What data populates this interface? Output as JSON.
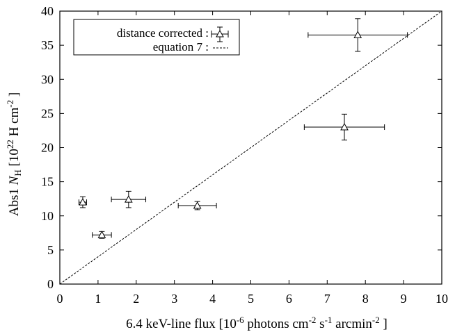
{
  "chart_data": {
    "type": "scatter",
    "xlim": [
      0,
      10
    ],
    "ylim": [
      0,
      40
    ],
    "xticks": [
      "0",
      "1",
      "2",
      "3",
      "4",
      "5",
      "6",
      "7",
      "8",
      "9",
      "10"
    ],
    "yticks": [
      "0",
      "5",
      "10",
      "15",
      "20",
      "25",
      "30",
      "35",
      "40"
    ],
    "xlabel": {
      "prefix": "6.4 keV-line flux   [10",
      "exp1": "-6",
      "mid1": " photons cm",
      "exp2": "-2",
      "mid2": " s",
      "exp3": "-1",
      "mid3": " arcmin",
      "exp4": "-2",
      "suffix": " ]"
    },
    "ylabel": {
      "prefix": "Abs1 ",
      "italic": "N",
      "sub": "H",
      "mid": " [10",
      "exp1": "22",
      "mid2": " H cm",
      "exp2": "-2",
      "suffix": " ]"
    },
    "legend": {
      "position": "top-left",
      "entries": [
        {
          "label": "distance  corrected :",
          "marker": "triangle-errorbar"
        },
        {
          "label": "equation 7 :",
          "marker": "dashed-line"
        }
      ]
    },
    "series": [
      {
        "marker": "triangle",
        "points": [
          {
            "x": 0.6,
            "y": 12.0,
            "xerr": 0.1,
            "yerr": 0.8
          },
          {
            "x": 1.1,
            "y": 7.2,
            "xerr": 0.25,
            "yerr": 0.5
          },
          {
            "x": 1.8,
            "y": 12.4,
            "xerr": 0.45,
            "yerr": 1.2
          },
          {
            "x": 3.6,
            "y": 11.5,
            "xerr": 0.5,
            "yerr": 0.6
          },
          {
            "x": 7.45,
            "y": 23.0,
            "xerr": 1.05,
            "yerr": 1.9
          },
          {
            "x": 7.8,
            "y": 36.5,
            "xerr": 1.3,
            "yerr": 2.4
          }
        ]
      },
      {
        "line_style": "dashed",
        "points": [
          {
            "x": 0,
            "y": 0
          },
          {
            "x": 10,
            "y": 40
          }
        ]
      }
    ]
  }
}
